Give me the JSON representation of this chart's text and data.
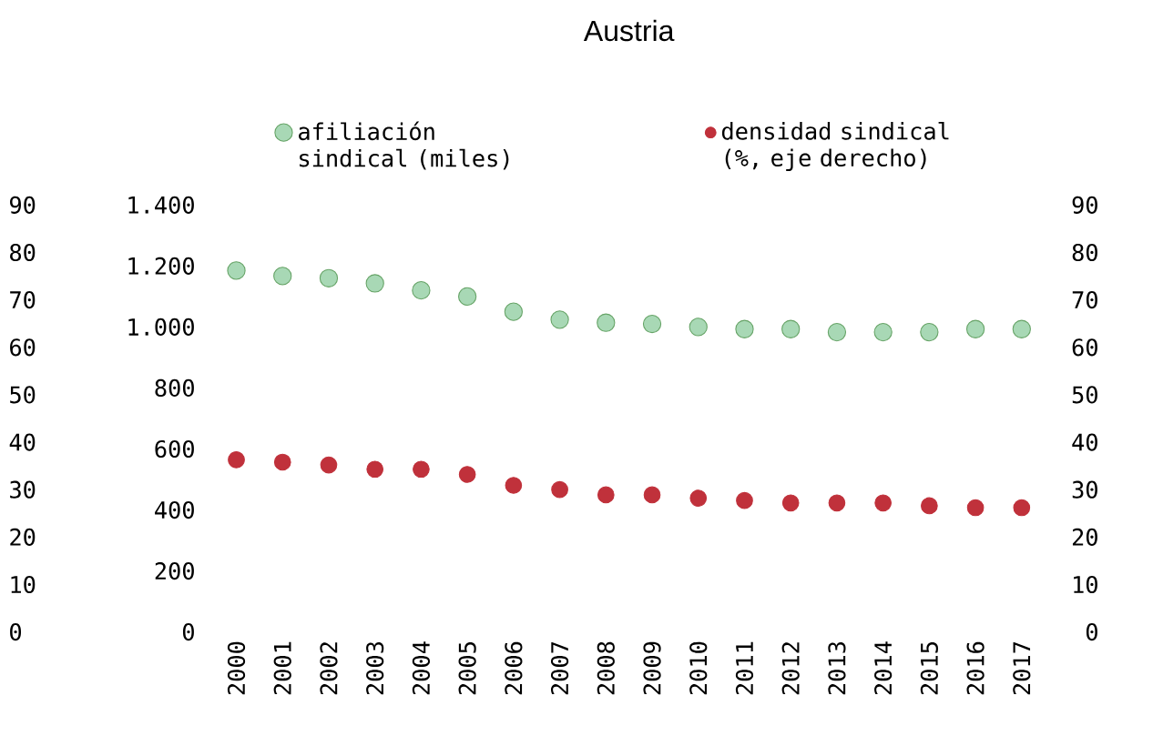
{
  "chart_data": {
    "type": "scatter",
    "title": "Austria",
    "categories": [
      "2000",
      "2001",
      "2002",
      "2003",
      "2004",
      "2005",
      "2006",
      "2007",
      "2008",
      "2009",
      "2010",
      "2011",
      "2012",
      "2013",
      "2014",
      "2015",
      "2016",
      "2017"
    ],
    "series": [
      {
        "name": "afiliación sindical (miles)",
        "color": "#a8d8b5",
        "values": [
          1185,
          1167,
          1160,
          1143,
          1120,
          1100,
          1050,
          1024,
          1014,
          1010,
          1000,
          993,
          993,
          983,
          983,
          983,
          993,
          993
        ]
      },
      {
        "name": "densidad sindical (%, eje derecho)",
        "color": "#c0313b",
        "axis": "y2",
        "values": [
          36.3,
          35.8,
          35.2,
          34.3,
          34.3,
          33.2,
          30.9,
          30.0,
          28.9,
          28.9,
          28.2,
          27.7,
          27.2,
          27.2,
          27.2,
          26.6,
          26.2,
          26.2
        ]
      }
    ],
    "ylim": [
      0,
      1400
    ],
    "yticks": [
      0,
      200,
      400,
      600,
      800,
      {
        "value": 1000,
        "label": "1.000"
      },
      {
        "value": 1200,
        "label": "1.200"
      },
      {
        "value": 1400,
        "label": "1.400"
      }
    ],
    "y2lim": [
      0,
      90
    ],
    "y2ticks": [
      0,
      10,
      20,
      30,
      40,
      50,
      60,
      70,
      80,
      90
    ],
    "y3lim": [
      0,
      90
    ],
    "y3ticks": [
      0,
      10,
      20,
      30,
      40,
      50,
      60,
      70,
      80,
      90
    ],
    "legend": "top",
    "marker": "circle",
    "grid": false
  }
}
